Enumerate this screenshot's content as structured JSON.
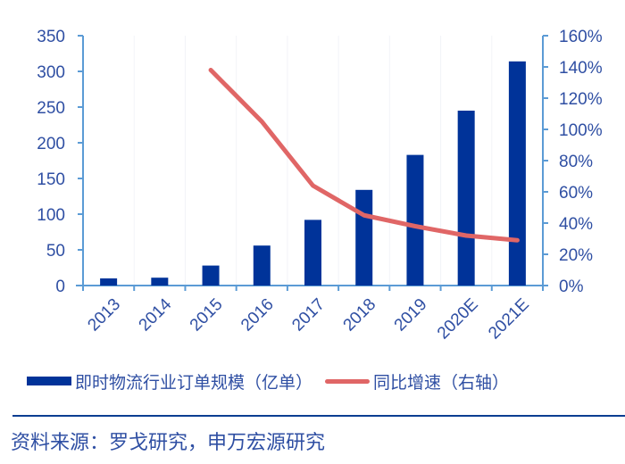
{
  "chart_data": {
    "type": "bar+line",
    "title": "",
    "categories": [
      "2013",
      "2014",
      "2015",
      "2016",
      "2017",
      "2018",
      "2019",
      "2020E",
      "2021E"
    ],
    "series": [
      {
        "name": "即时物流行业订单规模（亿单）",
        "type": "bar",
        "axis": "left",
        "color": "#003399",
        "values": [
          10,
          11,
          28,
          56,
          92,
          134,
          183,
          245,
          314
        ]
      },
      {
        "name": "同比增速（右轴）",
        "type": "line",
        "axis": "right",
        "color": "#e06666",
        "values": [
          null,
          null,
          1.38,
          1.05,
          0.64,
          0.45,
          0.38,
          0.32,
          0.29
        ]
      }
    ],
    "left_axis": {
      "ylim": [
        0,
        350
      ],
      "ticks": [
        "0",
        "50",
        "100",
        "150",
        "200",
        "250",
        "300",
        "350"
      ]
    },
    "right_axis": {
      "ylim": [
        0,
        1.6
      ],
      "ticks": [
        "0%",
        "20%",
        "40%",
        "60%",
        "80%",
        "100%",
        "120%",
        "140%",
        "160%"
      ]
    },
    "xlabel": "",
    "ylabel": "",
    "grid": false,
    "legend_position": "bottom"
  },
  "legend": {
    "bar_label": "即时物流行业订单规模（亿单）",
    "line_label": "同比增速（右轴）"
  },
  "source": "资料来源：罗戈研究，申万宏源研究",
  "colors": {
    "axis": "#5b9bd5",
    "bar": "#003399",
    "line": "#e06666",
    "text": "#2f4fa3",
    "divider": "#0b3d91"
  }
}
